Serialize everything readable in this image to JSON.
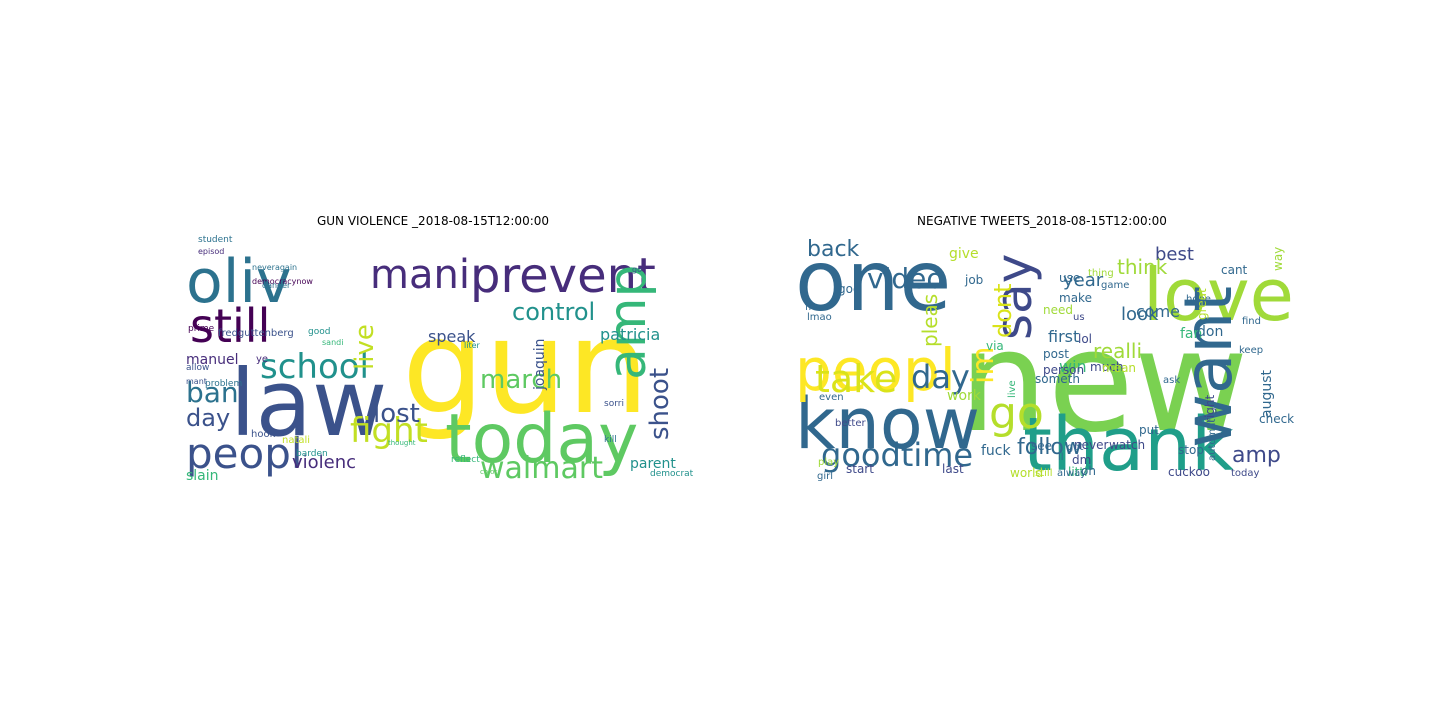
{
  "left_cloud": {
    "title": "GUN VIOLENCE _2018-08-15T12:00:00",
    "words": [
      {
        "text": "gun",
        "color": "#fde725"
      },
      {
        "text": "law",
        "color": "#3b528b"
      },
      {
        "text": "today",
        "color": "#5ec962"
      },
      {
        "text": "oliv",
        "color": "#2c728e"
      },
      {
        "text": "prevent",
        "color": "#472d7b"
      },
      {
        "text": "still",
        "color": "#440154"
      },
      {
        "text": "peopl",
        "color": "#3b528b"
      },
      {
        "text": "school",
        "color": "#21918c"
      },
      {
        "text": "mani",
        "color": "#472d7b"
      },
      {
        "text": "amp",
        "color": "#35b779"
      },
      {
        "text": "walmart",
        "color": "#5ec962"
      },
      {
        "text": "fight",
        "color": "#c2df23"
      },
      {
        "text": "march",
        "color": "#5ec962"
      },
      {
        "text": "control",
        "color": "#21918c"
      },
      {
        "text": "shoot",
        "color": "#3b528b"
      },
      {
        "text": "lost",
        "color": "#3b528b"
      },
      {
        "text": "ban",
        "color": "#2c728e"
      },
      {
        "text": "day",
        "color": "#3b528b"
      },
      {
        "text": "live",
        "color": "#c2df23"
      },
      {
        "text": "violenc",
        "color": "#472d7b"
      },
      {
        "text": "patricia",
        "color": "#21918c"
      },
      {
        "text": "speak",
        "color": "#3b528b"
      },
      {
        "text": "manuel",
        "color": "#472d7b"
      },
      {
        "text": "joaquin",
        "color": "#3b528b"
      },
      {
        "text": "parent",
        "color": "#21918c"
      },
      {
        "text": "slain",
        "color": "#35b779"
      },
      {
        "text": "fredguttenberg",
        "color": "#3b528b"
      },
      {
        "text": "problem",
        "color": "#2c728e"
      },
      {
        "text": "student",
        "color": "#2c728e"
      },
      {
        "text": "episod",
        "color": "#472d7b"
      },
      {
        "text": "neveragain",
        "color": "#2c728e"
      },
      {
        "text": "democracynow",
        "color": "#440154"
      },
      {
        "text": "liter",
        "color": "#21918c"
      },
      {
        "text": "allow",
        "color": "#3b528b"
      },
      {
        "text": "hook",
        "color": "#3b528b"
      },
      {
        "text": "natali",
        "color": "#c2df23"
      },
      {
        "text": "barden",
        "color": "#21918c"
      },
      {
        "text": "reflect",
        "color": "#35b779"
      },
      {
        "text": "democrat",
        "color": "#21918c"
      },
      {
        "text": "sorri",
        "color": "#3b528b"
      },
      {
        "text": "kill",
        "color": "#2c728e"
      },
      {
        "text": "color",
        "color": "#5ec962"
      },
      {
        "text": "thought",
        "color": "#35b779"
      },
      {
        "text": "ye",
        "color": "#472d7b"
      },
      {
        "text": "prime",
        "color": "#440154"
      },
      {
        "text": "danger",
        "color": "#2c728e"
      },
      {
        "text": "good",
        "color": "#21918c"
      },
      {
        "text": "sandi",
        "color": "#35b779"
      },
      {
        "text": "mant",
        "color": "#3b528b"
      },
      {
        "text": "go",
        "color": "#3b528b"
      }
    ]
  },
  "right_cloud": {
    "title": "NEGATIVE TWEETS_2018-08-15T12:00:00",
    "words": [
      {
        "text": "new",
        "color": "#7ad151"
      },
      {
        "text": "love",
        "color": "#a0da39"
      },
      {
        "text": "one",
        "color": "#31688e"
      },
      {
        "text": "thank",
        "color": "#1f9e89"
      },
      {
        "text": "know",
        "color": "#31688e"
      },
      {
        "text": "peopl",
        "color": "#fde725"
      },
      {
        "text": "want",
        "color": "#31688e"
      },
      {
        "text": "say",
        "color": "#3e4989"
      },
      {
        "text": "go",
        "color": "#b5de2b"
      },
      {
        "text": "take",
        "color": "#dae319"
      },
      {
        "text": "im",
        "color": "#fde725"
      },
      {
        "text": "goodtime",
        "color": "#31688e"
      },
      {
        "text": "video",
        "color": "#31688e"
      },
      {
        "text": "day",
        "color": "#31688e"
      },
      {
        "text": "amp",
        "color": "#3e4989"
      },
      {
        "text": "back",
        "color": "#31688e"
      },
      {
        "text": "follow",
        "color": "#31688e"
      },
      {
        "text": "dont",
        "color": "#dae319"
      },
      {
        "text": "look",
        "color": "#31688e"
      },
      {
        "text": "realli",
        "color": "#a0da39"
      },
      {
        "text": "first",
        "color": "#31688e"
      },
      {
        "text": "year",
        "color": "#31688e"
      },
      {
        "text": "best",
        "color": "#3e4989"
      },
      {
        "text": "think",
        "color": "#a0da39"
      },
      {
        "text": "come",
        "color": "#31688e"
      },
      {
        "text": "fan",
        "color": "#35b779"
      },
      {
        "text": "don",
        "color": "#31688e"
      },
      {
        "text": "pleas",
        "color": "#b5de2b"
      },
      {
        "text": "give",
        "color": "#b5de2b"
      },
      {
        "text": "make",
        "color": "#31688e"
      },
      {
        "text": "need",
        "color": "#a0da39"
      },
      {
        "text": "use",
        "color": "#31688e"
      },
      {
        "text": "lol",
        "color": "#3e4989"
      },
      {
        "text": "via",
        "color": "#35b779"
      },
      {
        "text": "win",
        "color": "#35b779"
      },
      {
        "text": "god",
        "color": "#31688e"
      },
      {
        "text": "free",
        "color": "#31688e"
      },
      {
        "text": "job",
        "color": "#31688e"
      },
      {
        "text": "much",
        "color": "#3e4989"
      },
      {
        "text": "person",
        "color": "#3e4989"
      },
      {
        "text": "post",
        "color": "#31688e"
      },
      {
        "text": "someth",
        "color": "#31688e"
      },
      {
        "text": "work",
        "color": "#a0da39"
      },
      {
        "text": "even",
        "color": "#31688e"
      },
      {
        "text": "better",
        "color": "#3e4989"
      },
      {
        "text": "play",
        "color": "#a0da39"
      },
      {
        "text": "girl",
        "color": "#31688e"
      },
      {
        "text": "start",
        "color": "#3e4989"
      },
      {
        "text": "last",
        "color": "#3e4989"
      },
      {
        "text": "world",
        "color": "#b5de2b"
      },
      {
        "text": "littl",
        "color": "#35b779"
      },
      {
        "text": "cuckoo",
        "color": "#3e4989"
      },
      {
        "text": "today",
        "color": "#3e4989"
      },
      {
        "text": "stop",
        "color": "#31688e"
      },
      {
        "text": "right",
        "color": "#3e4989"
      },
      {
        "text": "automat",
        "color": "#31688e"
      },
      {
        "text": "check",
        "color": "#31688e"
      },
      {
        "text": "august",
        "color": "#31688e"
      },
      {
        "text": "hope",
        "color": "#31688e"
      },
      {
        "text": "find",
        "color": "#31688e"
      },
      {
        "text": "great",
        "color": "#b5de2b"
      },
      {
        "text": "ask",
        "color": "#31688e"
      },
      {
        "text": "game",
        "color": "#31688e"
      },
      {
        "text": "mean",
        "color": "#b5de2b"
      },
      {
        "text": "lmao",
        "color": "#31688e"
      },
      {
        "text": "never",
        "color": "#3e4989"
      },
      {
        "text": "watch",
        "color": "#3e4989"
      },
      {
        "text": "fuck",
        "color": "#31688e"
      },
      {
        "text": "dm",
        "color": "#3e4989"
      },
      {
        "text": "oh",
        "color": "#31688e"
      },
      {
        "text": "see",
        "color": "#31688e"
      },
      {
        "text": "put",
        "color": "#31688e"
      },
      {
        "text": "got",
        "color": "#31688e"
      },
      {
        "text": "ll",
        "color": "#31688e"
      },
      {
        "text": "cant",
        "color": "#31688e"
      },
      {
        "text": "way",
        "color": "#a0da39"
      },
      {
        "text": "thing",
        "color": "#a0da39"
      },
      {
        "text": "us",
        "color": "#3e4989"
      },
      {
        "text": "keep",
        "color": "#31688e"
      },
      {
        "text": "alway",
        "color": "#31688e"
      },
      {
        "text": "still",
        "color": "#b5de2b"
      },
      {
        "text": "live",
        "color": "#35b779"
      },
      {
        "text": "call",
        "color": "#35b779"
      }
    ]
  }
}
